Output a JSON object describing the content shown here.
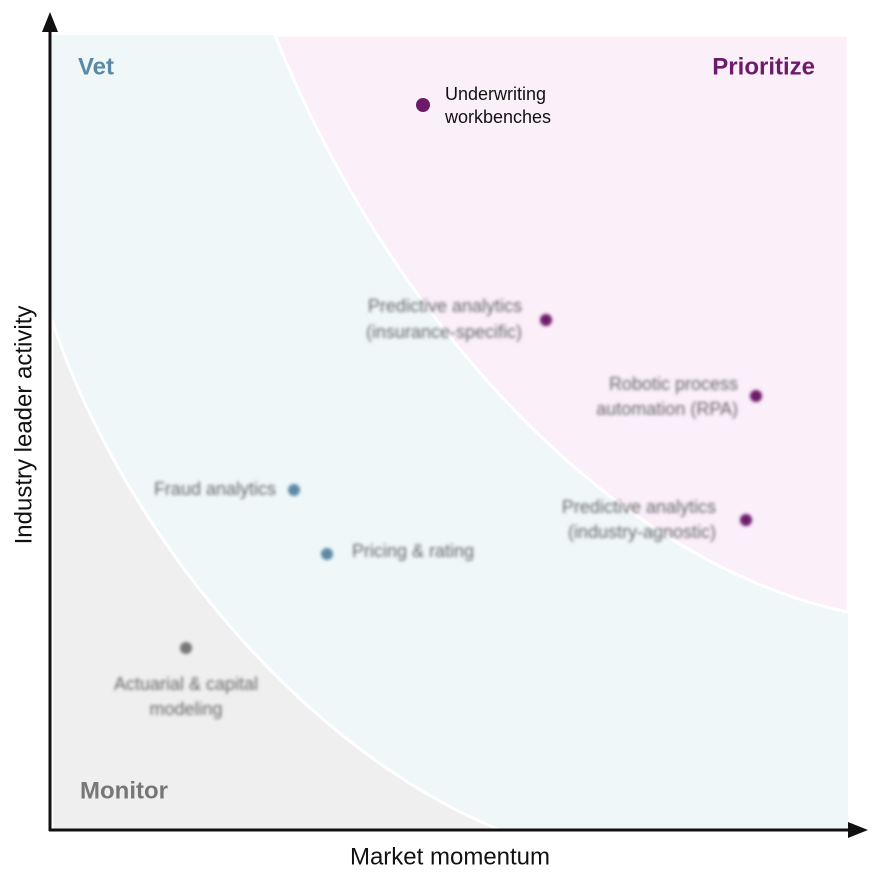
{
  "axes": {
    "x_label": "Market momentum",
    "y_label": "Industry leader activity"
  },
  "zones": {
    "vet": "Vet",
    "prioritize": "Prioritize",
    "monitor": "Monitor"
  },
  "nodes": [
    {
      "label": [
        "Underwriting",
        "workbenches"
      ]
    },
    {
      "label": [
        "Predictive analytics",
        "(insurance-specific)"
      ]
    },
    {
      "label": [
        "Robotic process",
        "automation (RPA)"
      ]
    },
    {
      "label": [
        "Predictive analytics",
        "(industry-agnostic)"
      ]
    },
    {
      "label": [
        "Fraud analytics"
      ]
    },
    {
      "label": [
        "Pricing & rating"
      ]
    },
    {
      "label": [
        "Actuarial & capital",
        "modeling"
      ]
    }
  ]
}
